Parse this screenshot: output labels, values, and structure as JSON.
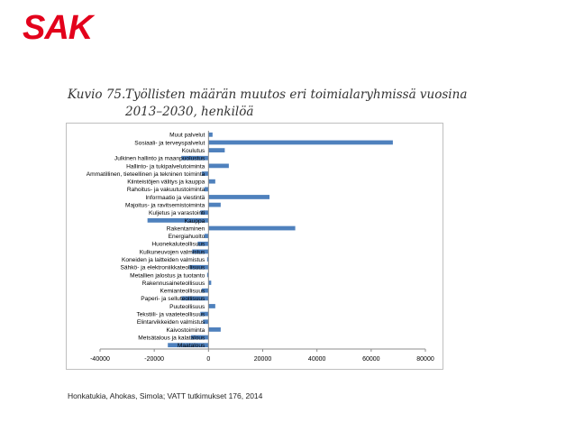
{
  "logo": "SAK",
  "caption": {
    "number": "Kuvio 75.",
    "title": "Työllisten määrän muutos eri toimialaryhmissä vuosina 2013–2030, henkilöä"
  },
  "source": "Honkatukia, Ahokas, Simola; VATT tutkimukset 176, 2014",
  "colors": {
    "bar": "#4f81bd",
    "axis": "#8c8c8c",
    "logo": "#e3001b"
  },
  "chart_data": {
    "type": "bar",
    "orientation": "horizontal",
    "title": "",
    "xlabel": "",
    "ylabel": "",
    "xlim": [
      -40000,
      80000
    ],
    "xticks": [
      -40000,
      -20000,
      0,
      20000,
      40000,
      60000,
      80000
    ],
    "grid": false,
    "categories": [
      "Muut palvelut",
      "Sosiaali- ja terveyspalvelut",
      "Koulutus",
      "Julkinen hallinto ja maanpuolustus",
      "Hallinto- ja tukipalvelutoiminta",
      "Ammatillinen, tieteellinen ja tekninen toiminta",
      "Kiinteistöjen välitys ja kauppa",
      "Rahoitus- ja vakuutustoiminta",
      "Informaatio ja viestintä",
      "Majoitus- ja ravitsemistoiminta",
      "Kuljetus ja varastointi",
      "Kauppa",
      "Rakentaminen",
      "Energiahuolto",
      "Huonekaluteollisuus",
      "Kulkuneuvojen valmistus",
      "Koneiden ja laitteiden valmistus",
      "Sähkö- ja elektroniikkateollisuus",
      "Metallien jalostus ja tuotanto",
      "Rakennusaineteollisuus",
      "Kemianteollisuus",
      "Paperi- ja selluteollisuus",
      "Puuteollisuus",
      "Tekstiili- ja vaateteollisuus",
      "Elintarvikkeiden valmistus",
      "Kaivostoiminta",
      "Metsätalous ja kalatalous",
      "Maatalous"
    ],
    "values": [
      1500,
      68000,
      6000,
      -10000,
      7500,
      -2500,
      2500,
      -1500,
      22500,
      4500,
      -3000,
      -22500,
      32000,
      -1500,
      -4000,
      -6000,
      -500,
      -7000,
      -500,
      1000,
      -2500,
      -10000,
      2500,
      -3000,
      -2000,
      4500,
      -6500,
      -15000
    ]
  }
}
